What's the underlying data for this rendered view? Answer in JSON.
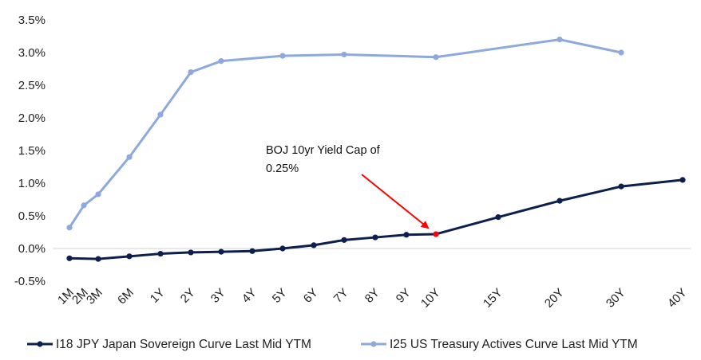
{
  "chart_data": {
    "type": "line",
    "title": "",
    "xlabel": "",
    "ylabel": "",
    "ylim": [
      -0.005,
      0.035
    ],
    "y_tick_labels": [
      "-0.5%",
      "0.0%",
      "0.5%",
      "1.0%",
      "1.5%",
      "2.0%",
      "2.5%",
      "3.0%",
      "3.5%"
    ],
    "y_ticks": [
      -0.005,
      0.0,
      0.005,
      0.01,
      0.015,
      0.02,
      0.025,
      0.03,
      0.035
    ],
    "categories": [
      "1M",
      "2M",
      "3M",
      "6M",
      "1Y",
      "2Y",
      "3Y",
      "4Y",
      "5Y",
      "6Y",
      "7Y",
      "8Y",
      "9Y",
      "10Y",
      "15Y",
      "20Y",
      "30Y",
      "40Y"
    ],
    "grid": false,
    "legend_position": "bottom",
    "series": [
      {
        "name": "I18 JPY Japan Sovereign Curve Last Mid YTM",
        "color": "#0c1f4d",
        "values": [
          -0.0015,
          null,
          -0.0016,
          -0.0012,
          -0.0008,
          -0.0006,
          -0.0005,
          -0.0004,
          0.0,
          0.0005,
          0.0013,
          0.0017,
          0.0021,
          0.0022,
          0.0048,
          0.0073,
          0.0095,
          0.0105
        ]
      },
      {
        "name": "I25 US Treasury Actives Curve Last Mid YTM",
        "color": "#8ea9db",
        "values": [
          0.0032,
          0.0066,
          0.0083,
          0.014,
          0.0205,
          0.027,
          0.0287,
          null,
          0.0295,
          null,
          0.0297,
          null,
          null,
          0.0293,
          null,
          0.032,
          0.03,
          null
        ]
      }
    ],
    "annotation": {
      "lines": [
        "BOJ 10yr Yield Cap of",
        "0.25%"
      ],
      "target_category": "10Y",
      "highlight_color": "#ff0000"
    }
  }
}
